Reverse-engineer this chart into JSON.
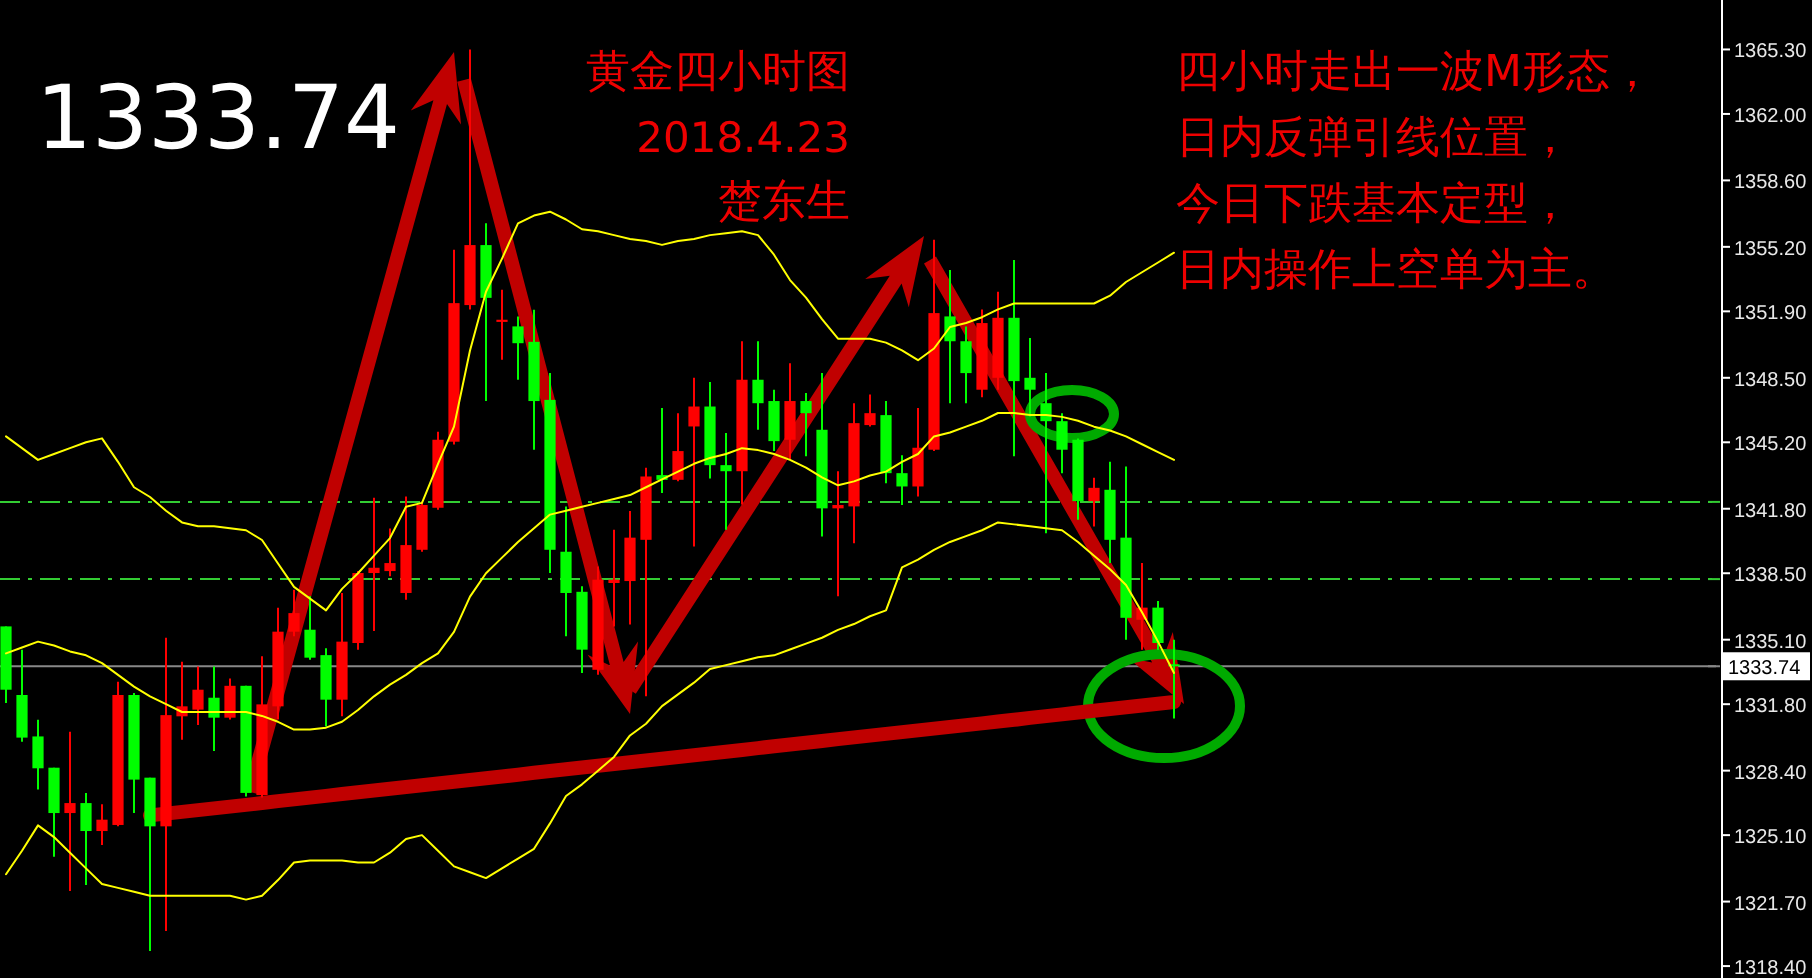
{
  "chart_data": {
    "type": "candlestick",
    "title": "黄金四小时图",
    "subtitle": "2018.4.23",
    "annotations": [
      "1333.74",
      "楚东生",
      "四小时走出一波M形态，",
      "日内反弹引线位置，",
      "今日下跌基本定型，",
      "日内操作上空单为主。"
    ],
    "categories": [
      null,
      null,
      null,
      null,
      null,
      null,
      null,
      null,
      null,
      null,
      null,
      null,
      null,
      null,
      null,
      null,
      null,
      null,
      null,
      null,
      null,
      null,
      null,
      null,
      null,
      null,
      null,
      null,
      null,
      null,
      null,
      null,
      null,
      null,
      null,
      null,
      null,
      null,
      null,
      null,
      null,
      null,
      null,
      null,
      null,
      null,
      null,
      null,
      null,
      null,
      null,
      null,
      null,
      null,
      null,
      null,
      null,
      null,
      null,
      null,
      null,
      null,
      null,
      null,
      null,
      null,
      null,
      null,
      null,
      null,
      null,
      null,
      null,
      null
    ],
    "ohlc": [
      [
        1335.78,
        1335.78,
        1331.86,
        1332.54
      ],
      [
        1332.27,
        1334.59,
        1329.88,
        1330.09
      ],
      [
        1330.15,
        1331.0,
        1327.43,
        1328.52
      ],
      [
        1328.55,
        1328.55,
        1324.0,
        1326.23
      ],
      [
        1326.23,
        1330.39,
        1322.24,
        1326.74
      ],
      [
        1326.74,
        1327.26,
        1322.55,
        1325.31
      ],
      [
        1325.31,
        1326.68,
        1324.6,
        1325.89
      ],
      [
        1325.62,
        1332.95,
        1325.55,
        1332.27
      ],
      [
        1332.27,
        1332.37,
        1326.23,
        1327.94
      ],
      [
        1328.04,
        1328.04,
        1319.17,
        1325.55
      ],
      [
        1325.55,
        1335.2,
        1320.19,
        1331.24
      ],
      [
        1331.18,
        1333.97,
        1329.98,
        1331.69
      ],
      [
        1331.52,
        1333.73,
        1330.73,
        1332.54
      ],
      [
        1332.13,
        1333.73,
        1329.4,
        1331.11
      ],
      [
        1331.11,
        1333.12,
        1331.01,
        1332.74
      ],
      [
        1332.74,
        1332.74,
        1327.08,
        1327.26
      ],
      [
        1327.15,
        1334.25,
        1327.02,
        1331.79
      ],
      [
        1331.69,
        1336.74,
        1331.01,
        1335.51
      ],
      [
        1335.51,
        1337.66,
        1335.27,
        1336.46
      ],
      [
        1335.61,
        1337.32,
        1334.07,
        1334.18
      ],
      [
        1334.31,
        1334.66,
        1330.66,
        1332.03
      ],
      [
        1332.03,
        1337.49,
        1331.18,
        1335.0
      ],
      [
        1334.93,
        1338.61,
        1334.59,
        1338.51
      ],
      [
        1338.51,
        1342.36,
        1335.54,
        1338.78
      ],
      [
        1338.61,
        1340.79,
        1338.34,
        1339.02
      ],
      [
        1337.49,
        1342.43,
        1337.14,
        1339.94
      ],
      [
        1339.7,
        1342.16,
        1339.6,
        1341.99
      ],
      [
        1341.85,
        1345.74,
        1341.75,
        1345.33
      ],
      [
        1345.23,
        1355.05,
        1345.09,
        1352.32
      ],
      [
        1352.22,
        1365.3,
        1352.0,
        1355.29
      ],
      [
        1355.29,
        1356.41,
        1347.31,
        1352.59
      ],
      [
        1351.36,
        1353.0,
        1349.42,
        1351.47
      ],
      [
        1351.13,
        1351.64,
        1348.4,
        1350.27
      ],
      [
        1350.34,
        1351.98,
        1344.82,
        1347.31
      ],
      [
        1347.37,
        1348.74,
        1338.51,
        1339.7
      ],
      [
        1339.6,
        1341.92,
        1335.27,
        1337.49
      ],
      [
        1337.55,
        1337.83,
        1333.39,
        1334.59
      ],
      [
        1333.56,
        1338.85,
        1333.3,
        1338.17
      ],
      [
        1338.0,
        1340.73,
        1335.78,
        1338.17
      ],
      [
        1338.1,
        1341.68,
        1335.88,
        1340.32
      ],
      [
        1340.21,
        1343.9,
        1332.2,
        1343.45
      ],
      [
        1343.52,
        1346.96,
        1342.6,
        1343.28
      ],
      [
        1343.28,
        1346.69,
        1343.21,
        1344.75
      ],
      [
        1346.01,
        1348.5,
        1339.87,
        1347.03
      ],
      [
        1347.03,
        1348.29,
        1343.35,
        1344.03
      ],
      [
        1344.03,
        1345.67,
        1340.72,
        1343.72
      ],
      [
        1343.72,
        1350.37,
        1342.02,
        1348.4
      ],
      [
        1348.4,
        1350.37,
        1345.84,
        1347.2
      ],
      [
        1347.31,
        1347.89,
        1344.75,
        1345.26
      ],
      [
        1345.33,
        1349.25,
        1344.3,
        1347.31
      ],
      [
        1347.31,
        1347.72,
        1344.48,
        1346.69
      ],
      [
        1345.84,
        1348.74,
        1340.38,
        1341.82
      ],
      [
        1341.82,
        1343.72,
        1337.32,
        1341.99
      ],
      [
        1341.92,
        1347.2,
        1340.04,
        1346.18
      ],
      [
        1346.08,
        1347.65,
        1346.01,
        1346.69
      ],
      [
        1346.59,
        1347.31,
        1343.11,
        1343.62
      ],
      [
        1343.62,
        1344.54,
        1341.99,
        1342.94
      ],
      [
        1342.94,
        1346.96,
        1342.43,
        1344.92
      ],
      [
        1344.82,
        1355.56,
        1344.75,
        1351.81
      ],
      [
        1351.64,
        1354.02,
        1347.2,
        1350.37
      ],
      [
        1350.37,
        1351.13,
        1347.2,
        1348.74
      ],
      [
        1347.89,
        1352.0,
        1347.5,
        1351.3
      ],
      [
        1348.5,
        1352.9,
        1347.89,
        1351.57
      ],
      [
        1351.57,
        1354.53,
        1344.48,
        1348.33
      ],
      [
        1348.5,
        1350.54,
        1346.52,
        1347.89
      ],
      [
        1347.2,
        1348.74,
        1340.55,
        1346.28
      ],
      [
        1346.28,
        1346.69,
        1343.62,
        1344.82
      ],
      [
        1345.33,
        1345.4,
        1341.24,
        1342.19
      ],
      [
        1342.19,
        1343.38,
        1340.89,
        1342.87
      ],
      [
        1342.77,
        1344.2,
        1339.02,
        1340.21
      ],
      [
        1340.32,
        1343.96,
        1335.1,
        1336.22
      ],
      [
        1336.12,
        1339.02,
        1334.59,
        1336.74
      ],
      [
        1336.74,
        1337.08,
        1334.59,
        1334.93
      ],
      [
        1333.84,
        1335.1,
        1331.07,
        1333.74
      ]
    ],
    "colors": [
      "#00ff00",
      "#00ff00",
      "#00ff00",
      "#00ff00",
      "#ff0000",
      "#00ff00",
      "#ff0000",
      "#ff0000",
      "#00ff00",
      "#00ff00",
      "#ff0000",
      "#ff0000",
      "#ff0000",
      "#00ff00",
      "#ff0000",
      "#00ff00",
      "#ff0000",
      "#ff0000",
      "#ff0000",
      "#00ff00",
      "#00ff00",
      "#ff0000",
      "#ff0000",
      "#ff0000",
      "#ff0000",
      "#ff0000",
      "#ff0000",
      "#ff0000",
      "#ff0000",
      "#ff0000",
      "#00ff00",
      "#ff0000",
      "#00ff00",
      "#00ff00",
      "#00ff00",
      "#00ff00",
      "#00ff00",
      "#ff0000",
      "#ff0000",
      "#ff0000",
      "#ff0000",
      "#00ff00",
      "#ff0000",
      "#ff0000",
      "#00ff00",
      "#00ff00",
      "#ff0000",
      "#00ff00",
      "#00ff00",
      "#ff0000",
      "#00ff00",
      "#00ff00",
      "#ff0000",
      "#ff0000",
      "#ff0000",
      "#00ff00",
      "#00ff00",
      "#ff0000",
      "#ff0000",
      "#00ff00",
      "#00ff00",
      "#ff0000",
      "#ff0000",
      "#00ff00",
      "#00ff00",
      "#00ff00",
      "#00ff00",
      "#00ff00",
      "#ff0000",
      "#00ff00",
      "#00ff00",
      "#ff0000",
      "#00ff00",
      "#00ff00"
    ],
    "series": [
      {
        "type": "line",
        "color": "#ffff00",
        "values": [
          1345.5,
          1344.9,
          1344.3,
          1344.6,
          1344.9,
          1345.2,
          1345.4,
          1344.2,
          1342.9,
          1342.4,
          1341.7,
          1341.1,
          1340.9,
          1340.9,
          1340.8,
          1340.7,
          1340.2,
          1339.0,
          1337.8,
          1337.2,
          1336.6,
          1337.7,
          1338.5,
          1339.4,
          1340.3,
          1341.9,
          1342.1,
          1344.1,
          1346.0,
          1349.9,
          1352.9,
          1354.6,
          1356.4,
          1356.8,
          1357.0,
          1356.6,
          1356.1,
          1356.0,
          1355.8,
          1355.6,
          1355.5,
          1355.3,
          1355.5,
          1355.6,
          1355.8,
          1355.9,
          1356.0,
          1355.8,
          1354.8,
          1353.5,
          1352.6,
          1351.5,
          1350.5,
          1350.5,
          1350.5,
          1350.3,
          1349.9,
          1349.4,
          1350.0,
          1351.1,
          1351.3,
          1351.6,
          1352.0,
          1352.3,
          1352.3,
          1352.3,
          1352.3,
          1352.3,
          1352.3,
          1352.7,
          1353.4,
          1353.9,
          1354.4,
          1354.9
        ]
      },
      {
        "type": "line",
        "color": "#ffff00",
        "values": [
          1334.4,
          1334.7,
          1335.0,
          1334.8,
          1334.5,
          1334.3,
          1333.9,
          1333.3,
          1332.7,
          1332.2,
          1331.8,
          1331.4,
          1331.4,
          1331.4,
          1331.4,
          1331.4,
          1331.2,
          1330.9,
          1330.5,
          1330.5,
          1330.6,
          1330.9,
          1331.5,
          1332.2,
          1332.8,
          1333.3,
          1333.9,
          1334.4,
          1335.5,
          1337.3,
          1338.5,
          1339.3,
          1340.1,
          1340.8,
          1341.5,
          1341.7,
          1341.9,
          1342.1,
          1342.3,
          1342.5,
          1342.9,
          1343.3,
          1343.7,
          1344.1,
          1344.4,
          1344.6,
          1344.9,
          1344.8,
          1344.6,
          1344.3,
          1343.9,
          1343.4,
          1343.0,
          1343.2,
          1343.5,
          1343.7,
          1344.2,
          1344.6,
          1345.5,
          1345.7,
          1346.0,
          1346.3,
          1346.7,
          1346.7,
          1346.6,
          1346.6,
          1346.5,
          1346.3,
          1346.0,
          1345.8,
          1345.5,
          1345.1,
          1344.7,
          1344.3
        ]
      },
      {
        "type": "line",
        "color": "#ffff00",
        "values": [
          1323.1,
          1324.3,
          1325.6,
          1325.0,
          1324.2,
          1323.4,
          1322.6,
          1322.4,
          1322.2,
          1322.0,
          1322.0,
          1322.0,
          1322.0,
          1322.0,
          1322.0,
          1321.8,
          1322.0,
          1322.8,
          1323.7,
          1323.8,
          1323.8,
          1323.8,
          1323.7,
          1323.7,
          1324.2,
          1324.9,
          1325.1,
          1324.3,
          1323.5,
          1323.2,
          1322.9,
          1323.4,
          1323.9,
          1324.4,
          1325.7,
          1327.1,
          1327.7,
          1328.4,
          1329.1,
          1330.2,
          1330.8,
          1331.7,
          1332.3,
          1332.9,
          1333.6,
          1333.8,
          1334.0,
          1334.2,
          1334.3,
          1334.6,
          1334.9,
          1335.2,
          1335.6,
          1335.9,
          1336.3,
          1336.6,
          1338.8,
          1339.2,
          1339.7,
          1340.1,
          1340.4,
          1340.7,
          1341.1,
          1341.0,
          1340.9,
          1340.8,
          1340.7,
          1340.1,
          1339.4,
          1338.7,
          1337.9,
          1336.5,
          1335.0,
          1333.4
        ]
      },
      {
        "type": "line",
        "color": "#c00000",
        "values": [
          null,
          null,
          null,
          null,
          null,
          null,
          null,
          null,
          null,
          1326.11,
          1326.2,
          1326.29,
          1326.38,
          1326.47,
          1326.56,
          1326.65,
          1326.74,
          1326.84,
          1326.93,
          1327.02,
          1327.11,
          1327.2,
          1327.29,
          1327.38,
          1327.47,
          1327.56,
          1327.65,
          1327.74,
          1327.83,
          1327.92,
          1328.01,
          1328.1,
          1328.19,
          1328.29,
          1328.38,
          1328.47,
          1328.56,
          1328.65,
          1328.74,
          1328.83,
          1328.92,
          1329.01,
          1329.1,
          1329.19,
          1329.28,
          1329.37,
          1329.46,
          1329.55,
          1329.65,
          1329.74,
          1329.83,
          1329.92,
          1330.01,
          1330.1,
          1330.19,
          1330.28,
          1330.37,
          1330.46,
          1330.55,
          1330.64,
          1330.73,
          1330.82,
          1330.91,
          1331.0,
          1331.1,
          1331.19,
          1331.28,
          1331.37,
          1331.46,
          1331.55,
          1331.64,
          1331.73,
          1331.82,
          1331.91
        ]
      }
    ],
    "ylim": [
      1317.79,
      1367.83
    ],
    "yticks": [
      {
        "value": 1365.3,
        "label": "1365.30"
      },
      {
        "value": 1362.0,
        "label": "1362.00"
      },
      {
        "value": 1358.6,
        "label": "1358.60"
      },
      {
        "value": 1355.2,
        "label": "1355.20"
      },
      {
        "value": 1351.9,
        "label": "1351.90"
      },
      {
        "value": 1348.5,
        "label": "1348.50"
      },
      {
        "value": 1345.2,
        "label": "1345.20"
      },
      {
        "value": 1341.8,
        "label": "1341.80"
      },
      {
        "value": 1338.5,
        "label": "1338.50"
      },
      {
        "value": 1335.1,
        "label": "1335.10"
      },
      {
        "value": 1331.8,
        "label": "1331.80"
      },
      {
        "value": 1328.4,
        "label": "1328.40"
      },
      {
        "value": 1325.1,
        "label": "1325.10"
      },
      {
        "value": 1321.7,
        "label": "1321.70"
      },
      {
        "value": 1318.4,
        "label": "1318.40"
      }
    ],
    "tick_labels": "y",
    "ref_lines": [
      {
        "axis": "y",
        "value": 1342.15,
        "color": "#33cc33",
        "line_style": "dashed"
      },
      {
        "axis": "y",
        "value": 1338.2,
        "color": "#33cc33",
        "line_style": "dashed"
      },
      {
        "axis": "y",
        "value": 1333.74,
        "label": "1333.74",
        "color": "#888888",
        "line_style": "solid"
      }
    ]
  }
}
